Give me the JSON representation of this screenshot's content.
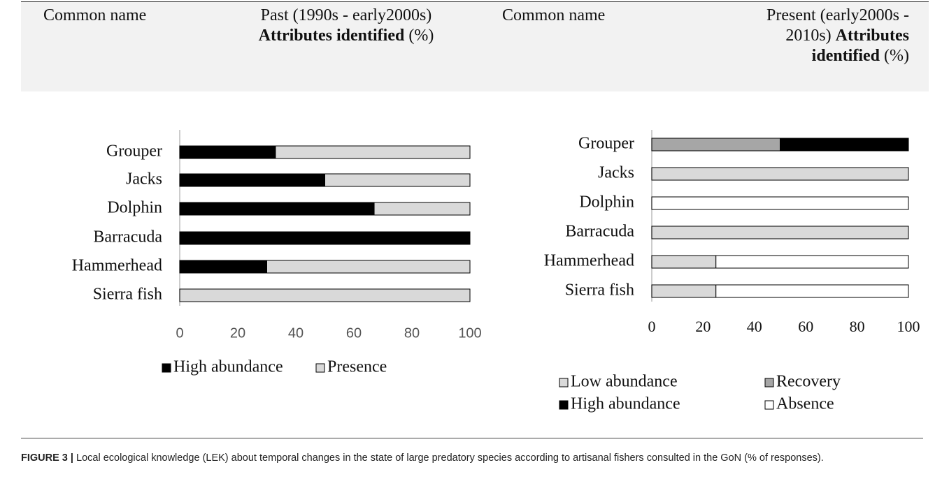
{
  "header": {
    "columns": [
      {
        "text": "Common name"
      },
      {
        "text": "Past (1990s - early2000s)",
        "bold": "Attributes identified",
        "suffix": "(%)"
      },
      {
        "text": "Common name"
      },
      {
        "text": "Present (early2000s - 2010s)",
        "bold": "Attributes identified",
        "suffix": "(%)"
      }
    ]
  },
  "chart_data": [
    {
      "type": "stacked_barh",
      "categories": [
        "Grouper",
        "Jacks",
        "Dolphin",
        "Barracuda",
        "Hammerhead",
        "Sierra fish"
      ],
      "series": [
        {
          "name": "High abundance",
          "color": "#000000",
          "values": [
            33,
            50,
            67,
            100,
            30,
            0
          ]
        },
        {
          "name": "Presence",
          "color": "#d9d9d9",
          "values": [
            67,
            50,
            33,
            0,
            70,
            100
          ]
        }
      ],
      "xlim": [
        0,
        100
      ],
      "xticks": [
        0,
        20,
        40,
        60,
        80,
        100
      ],
      "legend": "bottom"
    },
    {
      "type": "stacked_barh",
      "categories": [
        "Grouper",
        "Jacks",
        "Dolphin",
        "Barracuda",
        "Hammerhead",
        "Sierra fish"
      ],
      "series": [
        {
          "name": "Low abundance",
          "color": "#d9d9d9",
          "values": [
            0,
            100,
            0,
            100,
            25,
            25
          ]
        },
        {
          "name": "Recovery",
          "color": "#a6a6a6",
          "values": [
            50,
            0,
            0,
            0,
            0,
            0
          ]
        },
        {
          "name": "High abundance",
          "color": "#000000",
          "values": [
            50,
            0,
            0,
            0,
            0,
            0
          ]
        },
        {
          "name": "Absence",
          "color": "#ffffff",
          "values": [
            0,
            0,
            100,
            0,
            75,
            75
          ]
        }
      ],
      "xlim": [
        0,
        100
      ],
      "xticks": [
        0,
        20,
        40,
        60,
        80,
        100
      ],
      "legend": "bottom"
    }
  ],
  "caption": {
    "label": "FIGURE 3 |",
    "text": "Local ecological knowledge (LEK) about temporal changes in the state of large predatory species according to artisanal fishers consulted in the GoN (% of responses)."
  }
}
